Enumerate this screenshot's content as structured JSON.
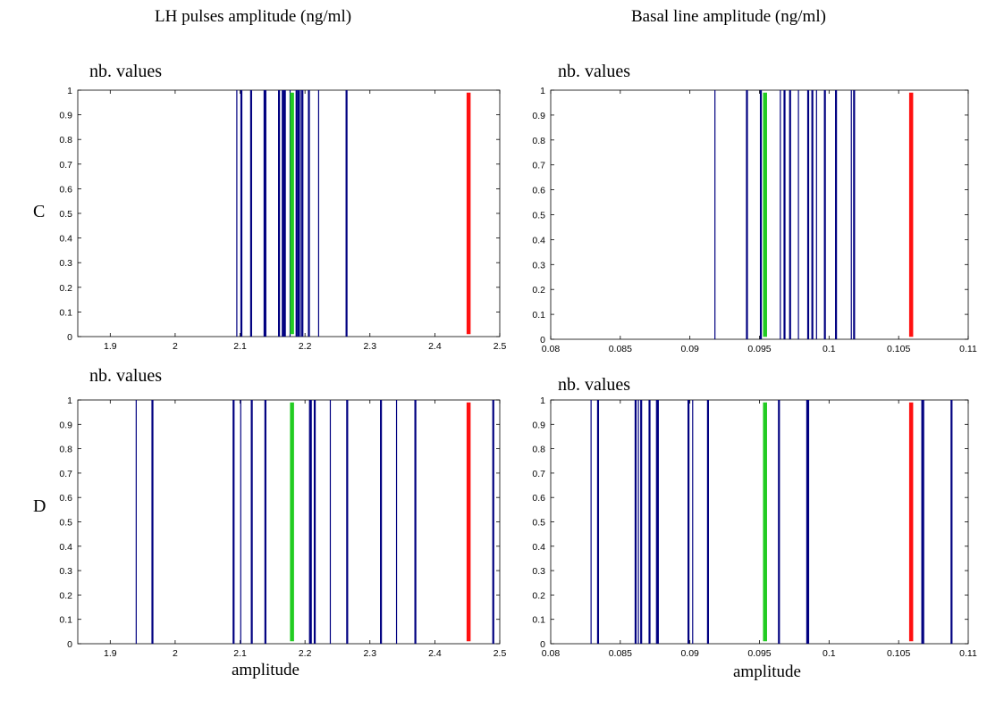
{
  "column_titles": [
    "LH pulses amplitude  (ng/ml)",
    "Basal line amplitude  (ng/ml)"
  ],
  "row_labels": [
    "C",
    "D"
  ],
  "x_axis_labels": [
    "amplitude",
    "amplitude"
  ],
  "colors": {
    "observed": "#000080",
    "green_marker": "#22cc22",
    "red_marker": "#ff1010"
  },
  "chart_data": [
    {
      "id": "C-left",
      "type": "bar",
      "ylabel": "nb. values",
      "xlim": [
        1.85,
        2.5
      ],
      "ylim": [
        0,
        1
      ],
      "xticks": [
        "1.9",
        "2",
        "2.1",
        "2.2",
        "2.3",
        "2.4",
        "2.5"
      ],
      "xtick_values": [
        1.9,
        2.0,
        2.1,
        2.2,
        2.3,
        2.4,
        2.5
      ],
      "yticks": [
        "0",
        "0.1",
        "0.2",
        "0.3",
        "0.4",
        "0.5",
        "0.6",
        "0.7",
        "0.8",
        "0.9",
        "1"
      ],
      "series": [
        {
          "values_x": [
            2.095,
            2.102,
            2.117,
            2.137,
            2.139,
            2.16,
            2.165,
            2.167,
            2.169,
            2.177,
            2.187,
            2.19,
            2.193,
            2.196,
            2.206,
            2.221,
            2.264
          ],
          "values_y": 1
        }
      ],
      "markers": [
        {
          "x": 2.18,
          "color": "green"
        },
        {
          "x": 2.452,
          "color": "red"
        }
      ]
    },
    {
      "id": "C-right",
      "type": "bar",
      "ylabel": "nb. values",
      "xlim": [
        0.08,
        0.11
      ],
      "ylim": [
        0,
        1
      ],
      "xticks": [
        "0.08",
        "0.085",
        "0.09",
        "0.095",
        "0.1",
        "0.105",
        "0.11"
      ],
      "xtick_values": [
        0.08,
        0.085,
        0.09,
        0.095,
        0.1,
        0.105,
        0.11
      ],
      "yticks": [
        "0",
        "0.1",
        "0.2",
        "0.3",
        "0.4",
        "0.5",
        "0.6",
        "0.7",
        "0.8",
        "0.9",
        "1"
      ],
      "series": [
        {
          "values_x": [
            0.0918,
            0.0941,
            0.0951,
            0.0965,
            0.0968,
            0.0972,
            0.0978,
            0.0985,
            0.0988,
            0.0991,
            0.0997,
            0.1005,
            0.1016,
            0.1018
          ],
          "values_y": 1
        }
      ],
      "markers": [
        {
          "x": 0.0954,
          "color": "green"
        },
        {
          "x": 0.1059,
          "color": "red"
        }
      ]
    },
    {
      "id": "D-left",
      "type": "bar",
      "ylabel": "nb. values",
      "xlim": [
        1.85,
        2.5
      ],
      "ylim": [
        0,
        1
      ],
      "xticks": [
        "1.9",
        "2",
        "2.1",
        "2.2",
        "2.3",
        "2.4",
        "2.5"
      ],
      "xtick_values": [
        1.9,
        2.0,
        2.1,
        2.2,
        2.3,
        2.4,
        2.5
      ],
      "yticks": [
        "0",
        "0.1",
        "0.2",
        "0.3",
        "0.4",
        "0.5",
        "0.6",
        "0.7",
        "0.8",
        "0.9",
        "1"
      ],
      "series": [
        {
          "values_x": [
            1.94,
            1.965,
            2.09,
            2.101,
            2.118,
            2.139,
            2.207,
            2.209,
            2.215,
            2.239,
            2.265,
            2.317,
            2.341,
            2.37,
            2.49
          ],
          "values_y": 1
        }
      ],
      "markers": [
        {
          "x": 2.18,
          "color": "green"
        },
        {
          "x": 2.452,
          "color": "red"
        }
      ]
    },
    {
      "id": "D-right",
      "type": "bar",
      "ylabel": "nb. values",
      "xlim": [
        0.08,
        0.11
      ],
      "ylim": [
        0,
        1
      ],
      "xticks": [
        "0.08",
        "0.085",
        "0.09",
        "0.095",
        "0.1",
        "0.105",
        "0.11"
      ],
      "xtick_values": [
        0.08,
        0.085,
        0.09,
        0.095,
        0.1,
        0.105,
        0.11
      ],
      "yticks": [
        "0",
        "0.1",
        "0.2",
        "0.3",
        "0.4",
        "0.5",
        "0.6",
        "0.7",
        "0.8",
        "0.9",
        "1"
      ],
      "series": [
        {
          "values_x": [
            0.0829,
            0.0834,
            0.0861,
            0.0863,
            0.0865,
            0.0871,
            0.0876,
            0.0877,
            0.0899,
            0.0902,
            0.0913,
            0.0964,
            0.0984,
            0.0985,
            0.1067,
            0.1068,
            0.1088
          ],
          "values_y": 1
        }
      ],
      "markers": [
        {
          "x": 0.0954,
          "color": "green"
        },
        {
          "x": 0.1059,
          "color": "red"
        }
      ]
    }
  ]
}
